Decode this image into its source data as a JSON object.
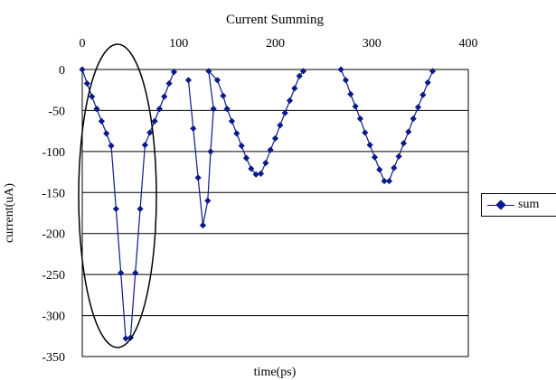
{
  "chart_data": {
    "type": "scatter",
    "title": "Current Summing",
    "xlabel": "time(ps)",
    "ylabel": "current(uA)",
    "xlim": [
      0,
      400
    ],
    "ylim": [
      -350,
      0
    ],
    "x_ticks": [
      "0",
      "100",
      "200",
      "300",
      "400"
    ],
    "y_ticks": [
      "0",
      "-50",
      "-100",
      "-150",
      "-200",
      "-250",
      "-300",
      "-350"
    ],
    "x_axis_position": "top",
    "grid": "horizontal",
    "legend_position": "right",
    "annotation": "ellipse around first pulse",
    "series": [
      {
        "name": "sum",
        "color": "#0a1a8c",
        "segments": [
          [
            [
              0,
              0
            ],
            [
              5,
              -17
            ],
            [
              10,
              -33
            ],
            [
              15,
              -48
            ],
            [
              20,
              -63
            ],
            [
              25,
              -78
            ],
            [
              30,
              -93
            ],
            [
              35,
              -170
            ],
            [
              40,
              -248
            ],
            [
              45,
              -328
            ],
            [
              50,
              -327
            ],
            [
              55,
              -248
            ],
            [
              60,
              -170
            ],
            [
              65,
              -92
            ],
            [
              70,
              -77
            ],
            [
              75,
              -63
            ],
            [
              80,
              -48
            ],
            [
              85,
              -33
            ],
            [
              90,
              -17
            ],
            [
              95,
              -3
            ]
          ],
          [
            [
              110,
              -13
            ],
            [
              115,
              -72
            ],
            [
              120,
              -132
            ],
            [
              125,
              -190
            ],
            [
              130,
              -160
            ],
            [
              133,
              -100
            ],
            [
              136,
              -48
            ],
            [
              131,
              -2
            ],
            [
              140,
              -13
            ],
            [
              146,
              -32
            ],
            [
              150,
              -48
            ],
            [
              155,
              -63
            ],
            [
              160,
              -78
            ],
            [
              165,
              -93
            ],
            [
              170,
              -108
            ],
            [
              175,
              -121
            ],
            [
              180,
              -128
            ],
            [
              185,
              -127
            ],
            [
              190,
              -114
            ],
            [
              195,
              -98
            ],
            [
              200,
              -84
            ],
            [
              205,
              -68
            ],
            [
              210,
              -53
            ],
            [
              215,
              -38
            ],
            [
              220,
              -23
            ],
            [
              225,
              -8
            ],
            [
              229,
              -2
            ]
          ],
          [
            [
              268,
              0
            ],
            [
              273,
              -13
            ],
            [
              278,
              -30
            ],
            [
              283,
              -45
            ],
            [
              288,
              -60
            ],
            [
              293,
              -77
            ],
            [
              298,
              -92
            ],
            [
              303,
              -107
            ],
            [
              308,
              -122
            ],
            [
              313,
              -136
            ],
            [
              318,
              -136
            ],
            [
              323,
              -120
            ],
            [
              328,
              -106
            ],
            [
              333,
              -90
            ],
            [
              338,
              -76
            ],
            [
              343,
              -60
            ],
            [
              348,
              -46
            ],
            [
              353,
              -31
            ],
            [
              358,
              -16
            ],
            [
              363,
              -2
            ]
          ]
        ]
      }
    ]
  }
}
